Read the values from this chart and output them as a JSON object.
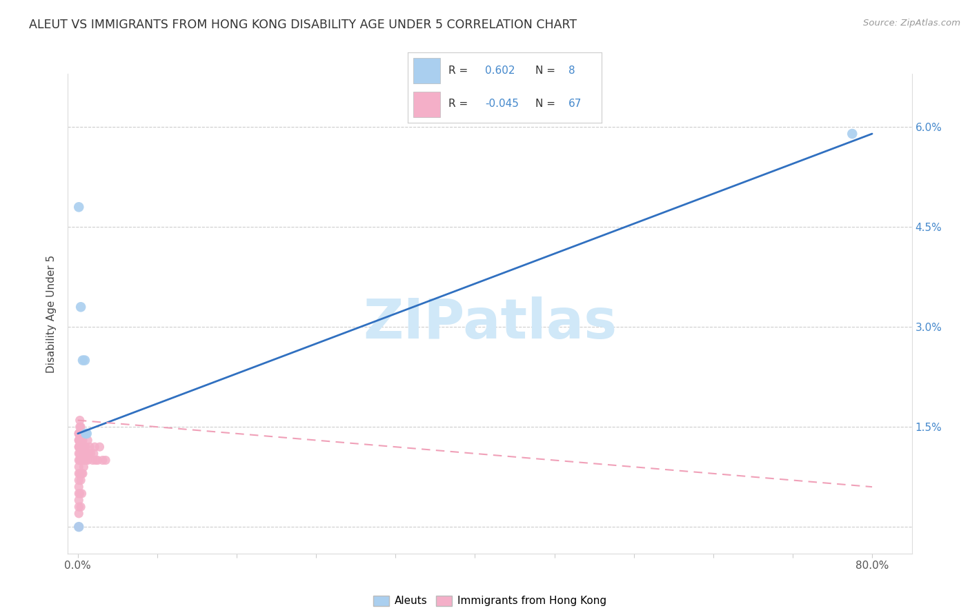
{
  "title": "ALEUT VS IMMIGRANTS FROM HONG KONG DISABILITY AGE UNDER 5 CORRELATION CHART",
  "source": "Source: ZipAtlas.com",
  "ylabel": "Disability Age Under 5",
  "xlabel_ticks": [
    "0.0%",
    "",
    "",
    "",
    "",
    "",
    "",
    "",
    "",
    "",
    "80.0%"
  ],
  "xlabel_vals": [
    0.0,
    0.08,
    0.16,
    0.24,
    0.32,
    0.4,
    0.48,
    0.56,
    0.64,
    0.72,
    0.8
  ],
  "ylabel_ticks_right": [
    "",
    "1.5%",
    "3.0%",
    "4.5%",
    "6.0%"
  ],
  "ylabel_vals": [
    0.0,
    0.015,
    0.03,
    0.045,
    0.06
  ],
  "xlim": [
    -0.01,
    0.84
  ],
  "ylim": [
    -0.004,
    0.068
  ],
  "aleut_line_x": [
    0.0,
    0.8
  ],
  "aleut_line_y": [
    0.014,
    0.059
  ],
  "hk_line_x": [
    0.0,
    0.8
  ],
  "hk_line_y": [
    0.016,
    0.006
  ],
  "aleut_color": "#aacfef",
  "hk_color": "#f4afc8",
  "aleut_line_color": "#3070c0",
  "hk_line_color": "#f0a0b8",
  "watermark_color": "#d0e8f8",
  "grid_color": "#cccccc",
  "title_color": "#333333",
  "source_color": "#999999",
  "aleut_scatter_x": [
    0.001,
    0.001,
    0.003,
    0.005,
    0.007,
    0.008,
    0.009,
    0.78
  ],
  "aleut_scatter_y": [
    0.0,
    0.048,
    0.033,
    0.025,
    0.025,
    0.014,
    0.014,
    0.059
  ],
  "hk_scatter_x": [
    0.001,
    0.001,
    0.001,
    0.001,
    0.001,
    0.001,
    0.001,
    0.001,
    0.001,
    0.001,
    0.001,
    0.001,
    0.001,
    0.001,
    0.001,
    0.001,
    0.001,
    0.001,
    0.001,
    0.001,
    0.002,
    0.002,
    0.002,
    0.002,
    0.002,
    0.002,
    0.002,
    0.002,
    0.002,
    0.003,
    0.003,
    0.003,
    0.003,
    0.003,
    0.003,
    0.003,
    0.004,
    0.004,
    0.004,
    0.004,
    0.004,
    0.005,
    0.005,
    0.005,
    0.005,
    0.006,
    0.006,
    0.006,
    0.007,
    0.007,
    0.008,
    0.008,
    0.009,
    0.01,
    0.01,
    0.011,
    0.012,
    0.013,
    0.015,
    0.016,
    0.017,
    0.018,
    0.02,
    0.022,
    0.025,
    0.028
  ],
  "hk_scatter_y": [
    0.0,
    0.0,
    0.0,
    0.002,
    0.003,
    0.004,
    0.005,
    0.006,
    0.007,
    0.008,
    0.009,
    0.01,
    0.011,
    0.012,
    0.012,
    0.013,
    0.013,
    0.014,
    0.014,
    0.014,
    0.005,
    0.008,
    0.01,
    0.011,
    0.012,
    0.013,
    0.014,
    0.015,
    0.016,
    0.003,
    0.007,
    0.01,
    0.012,
    0.013,
    0.014,
    0.015,
    0.005,
    0.008,
    0.01,
    0.012,
    0.013,
    0.008,
    0.01,
    0.012,
    0.013,
    0.009,
    0.011,
    0.014,
    0.01,
    0.012,
    0.01,
    0.012,
    0.011,
    0.01,
    0.013,
    0.011,
    0.012,
    0.011,
    0.01,
    0.011,
    0.012,
    0.01,
    0.01,
    0.012,
    0.01,
    0.01
  ],
  "background_color": "#ffffff"
}
